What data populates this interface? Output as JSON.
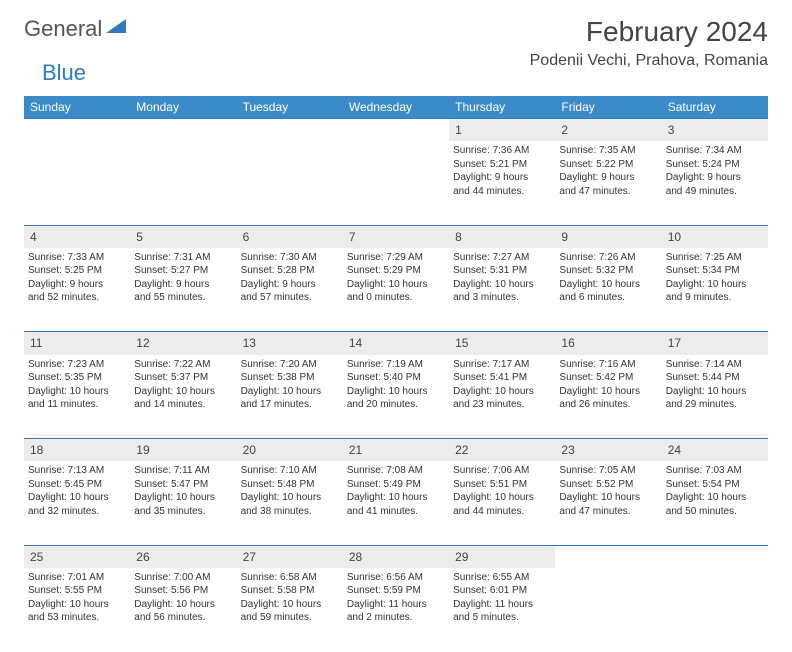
{
  "logo": {
    "general": "General",
    "blue": "Blue"
  },
  "title": "February 2024",
  "location": "Podenii Vechi, Prahova, Romania",
  "colors": {
    "header_bg": "#3b8bc9",
    "header_text": "#ffffff",
    "daynum_bg": "#ececec",
    "border": "#2f7bbf",
    "text": "#333333",
    "logo_gray": "#555555",
    "logo_blue": "#2f7bbf"
  },
  "weekdays": [
    "Sunday",
    "Monday",
    "Tuesday",
    "Wednesday",
    "Thursday",
    "Friday",
    "Saturday"
  ],
  "weeks": [
    {
      "nums": [
        "",
        "",
        "",
        "",
        "1",
        "2",
        "3"
      ],
      "cells": [
        null,
        null,
        null,
        null,
        {
          "sunrise": "Sunrise: 7:36 AM",
          "sunset": "Sunset: 5:21 PM",
          "day1": "Daylight: 9 hours",
          "day2": "and 44 minutes."
        },
        {
          "sunrise": "Sunrise: 7:35 AM",
          "sunset": "Sunset: 5:22 PM",
          "day1": "Daylight: 9 hours",
          "day2": "and 47 minutes."
        },
        {
          "sunrise": "Sunrise: 7:34 AM",
          "sunset": "Sunset: 5:24 PM",
          "day1": "Daylight: 9 hours",
          "day2": "and 49 minutes."
        }
      ]
    },
    {
      "nums": [
        "4",
        "5",
        "6",
        "7",
        "8",
        "9",
        "10"
      ],
      "cells": [
        {
          "sunrise": "Sunrise: 7:33 AM",
          "sunset": "Sunset: 5:25 PM",
          "day1": "Daylight: 9 hours",
          "day2": "and 52 minutes."
        },
        {
          "sunrise": "Sunrise: 7:31 AM",
          "sunset": "Sunset: 5:27 PM",
          "day1": "Daylight: 9 hours",
          "day2": "and 55 minutes."
        },
        {
          "sunrise": "Sunrise: 7:30 AM",
          "sunset": "Sunset: 5:28 PM",
          "day1": "Daylight: 9 hours",
          "day2": "and 57 minutes."
        },
        {
          "sunrise": "Sunrise: 7:29 AM",
          "sunset": "Sunset: 5:29 PM",
          "day1": "Daylight: 10 hours",
          "day2": "and 0 minutes."
        },
        {
          "sunrise": "Sunrise: 7:27 AM",
          "sunset": "Sunset: 5:31 PM",
          "day1": "Daylight: 10 hours",
          "day2": "and 3 minutes."
        },
        {
          "sunrise": "Sunrise: 7:26 AM",
          "sunset": "Sunset: 5:32 PM",
          "day1": "Daylight: 10 hours",
          "day2": "and 6 minutes."
        },
        {
          "sunrise": "Sunrise: 7:25 AM",
          "sunset": "Sunset: 5:34 PM",
          "day1": "Daylight: 10 hours",
          "day2": "and 9 minutes."
        }
      ]
    },
    {
      "nums": [
        "11",
        "12",
        "13",
        "14",
        "15",
        "16",
        "17"
      ],
      "cells": [
        {
          "sunrise": "Sunrise: 7:23 AM",
          "sunset": "Sunset: 5:35 PM",
          "day1": "Daylight: 10 hours",
          "day2": "and 11 minutes."
        },
        {
          "sunrise": "Sunrise: 7:22 AM",
          "sunset": "Sunset: 5:37 PM",
          "day1": "Daylight: 10 hours",
          "day2": "and 14 minutes."
        },
        {
          "sunrise": "Sunrise: 7:20 AM",
          "sunset": "Sunset: 5:38 PM",
          "day1": "Daylight: 10 hours",
          "day2": "and 17 minutes."
        },
        {
          "sunrise": "Sunrise: 7:19 AM",
          "sunset": "Sunset: 5:40 PM",
          "day1": "Daylight: 10 hours",
          "day2": "and 20 minutes."
        },
        {
          "sunrise": "Sunrise: 7:17 AM",
          "sunset": "Sunset: 5:41 PM",
          "day1": "Daylight: 10 hours",
          "day2": "and 23 minutes."
        },
        {
          "sunrise": "Sunrise: 7:16 AM",
          "sunset": "Sunset: 5:42 PM",
          "day1": "Daylight: 10 hours",
          "day2": "and 26 minutes."
        },
        {
          "sunrise": "Sunrise: 7:14 AM",
          "sunset": "Sunset: 5:44 PM",
          "day1": "Daylight: 10 hours",
          "day2": "and 29 minutes."
        }
      ]
    },
    {
      "nums": [
        "18",
        "19",
        "20",
        "21",
        "22",
        "23",
        "24"
      ],
      "cells": [
        {
          "sunrise": "Sunrise: 7:13 AM",
          "sunset": "Sunset: 5:45 PM",
          "day1": "Daylight: 10 hours",
          "day2": "and 32 minutes."
        },
        {
          "sunrise": "Sunrise: 7:11 AM",
          "sunset": "Sunset: 5:47 PM",
          "day1": "Daylight: 10 hours",
          "day2": "and 35 minutes."
        },
        {
          "sunrise": "Sunrise: 7:10 AM",
          "sunset": "Sunset: 5:48 PM",
          "day1": "Daylight: 10 hours",
          "day2": "and 38 minutes."
        },
        {
          "sunrise": "Sunrise: 7:08 AM",
          "sunset": "Sunset: 5:49 PM",
          "day1": "Daylight: 10 hours",
          "day2": "and 41 minutes."
        },
        {
          "sunrise": "Sunrise: 7:06 AM",
          "sunset": "Sunset: 5:51 PM",
          "day1": "Daylight: 10 hours",
          "day2": "and 44 minutes."
        },
        {
          "sunrise": "Sunrise: 7:05 AM",
          "sunset": "Sunset: 5:52 PM",
          "day1": "Daylight: 10 hours",
          "day2": "and 47 minutes."
        },
        {
          "sunrise": "Sunrise: 7:03 AM",
          "sunset": "Sunset: 5:54 PM",
          "day1": "Daylight: 10 hours",
          "day2": "and 50 minutes."
        }
      ]
    },
    {
      "nums": [
        "25",
        "26",
        "27",
        "28",
        "29",
        "",
        ""
      ],
      "cells": [
        {
          "sunrise": "Sunrise: 7:01 AM",
          "sunset": "Sunset: 5:55 PM",
          "day1": "Daylight: 10 hours",
          "day2": "and 53 minutes."
        },
        {
          "sunrise": "Sunrise: 7:00 AM",
          "sunset": "Sunset: 5:56 PM",
          "day1": "Daylight: 10 hours",
          "day2": "and 56 minutes."
        },
        {
          "sunrise": "Sunrise: 6:58 AM",
          "sunset": "Sunset: 5:58 PM",
          "day1": "Daylight: 10 hours",
          "day2": "and 59 minutes."
        },
        {
          "sunrise": "Sunrise: 6:56 AM",
          "sunset": "Sunset: 5:59 PM",
          "day1": "Daylight: 11 hours",
          "day2": "and 2 minutes."
        },
        {
          "sunrise": "Sunrise: 6:55 AM",
          "sunset": "Sunset: 6:01 PM",
          "day1": "Daylight: 11 hours",
          "day2": "and 5 minutes."
        },
        null,
        null
      ]
    }
  ]
}
